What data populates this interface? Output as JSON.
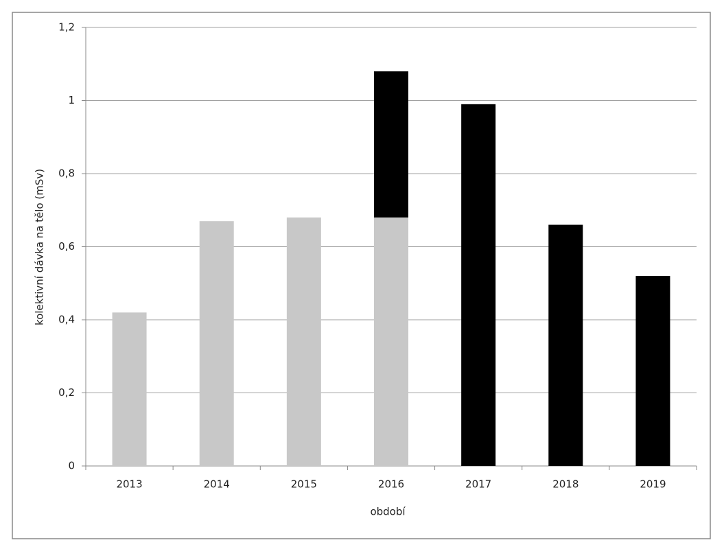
{
  "chart_data": {
    "type": "stacked-bar",
    "x_label": "období",
    "y_label": "kolektivní dávka na tělo (mSv)",
    "categories": [
      "2013",
      "2014",
      "2015",
      "2016",
      "2017",
      "2018",
      "2019"
    ],
    "series": [
      {
        "color": "#c8c8c8",
        "values": [
          0.42,
          0.67,
          0.68,
          0.68,
          null,
          null,
          null
        ]
      },
      {
        "color": "#000000",
        "values": [
          null,
          null,
          null,
          0.4,
          0.99,
          0.66,
          0.52
        ]
      }
    ],
    "ylim": [
      0,
      1.2
    ],
    "yticks": [
      0,
      {
        "value": 0.2,
        "label": "0,2"
      },
      {
        "value": 0.4,
        "label": "0,4"
      },
      {
        "value": 0.6,
        "label": "0,6"
      },
      {
        "value": 0.8,
        "label": "0,8"
      },
      1,
      {
        "value": 1.2,
        "label": "1,2"
      }
    ],
    "grid": true
  }
}
